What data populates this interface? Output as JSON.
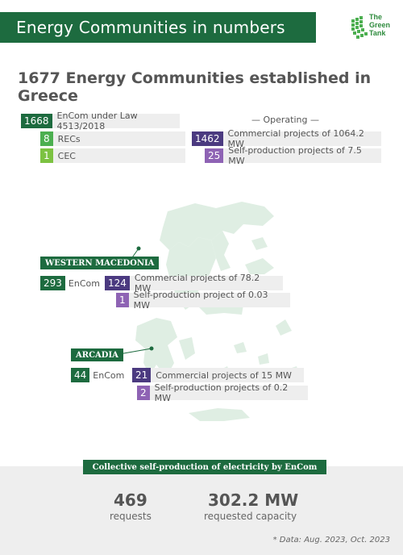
{
  "header": {
    "title": "Energy Communities in numbers",
    "logo_text_1": "The",
    "logo_text_2": "Green",
    "logo_text_3": "Tank"
  },
  "headline": "1677 Energy Communities established in Greece",
  "left_stats": [
    {
      "value": "1668",
      "label": "EnCom under Law 4513/2018"
    },
    {
      "value": "8",
      "label": "RECs"
    },
    {
      "value": "1",
      "label": "CEC"
    }
  ],
  "operating": {
    "heading": "— Operating —",
    "items": [
      {
        "value": "1462",
        "label": "Commercial projects of 1064.2 MW"
      },
      {
        "value": "25",
        "label": "Self-production projects of 7.5 MW"
      }
    ]
  },
  "western_macedonia": {
    "name": "WESTERN MACEDONIA",
    "encom_value": "293",
    "encom_label": "EnCom",
    "commercial_value": "124",
    "commercial_label": "Commercial projects of 78.2 MW",
    "selfprod_value": "1",
    "selfprod_label": "Self-production project of 0.03 MW"
  },
  "arcadia": {
    "name": "ARCADIA",
    "encom_value": "44",
    "encom_label": "EnCom",
    "commercial_value": "21",
    "commercial_label": "Commercial projects of 15 MW",
    "selfprod_value": "2",
    "selfprod_label": "Self-production projects of 0.2 MW"
  },
  "collective": {
    "banner": "Collective self-production of electricity by EnCom",
    "requests_value": "469",
    "requests_label": "requests",
    "capacity_value": "302.2 MW",
    "capacity_label": "requested capacity"
  },
  "footnote": "* Data: Aug. 2023, Oct. 2023",
  "colors": {
    "dark_green": "#1d6b3f",
    "mid_green": "#4caf50",
    "light_green": "#7cc242",
    "dark_purple": "#4b3a80",
    "mid_purple": "#8e63b4",
    "map": "#dfeee3"
  }
}
